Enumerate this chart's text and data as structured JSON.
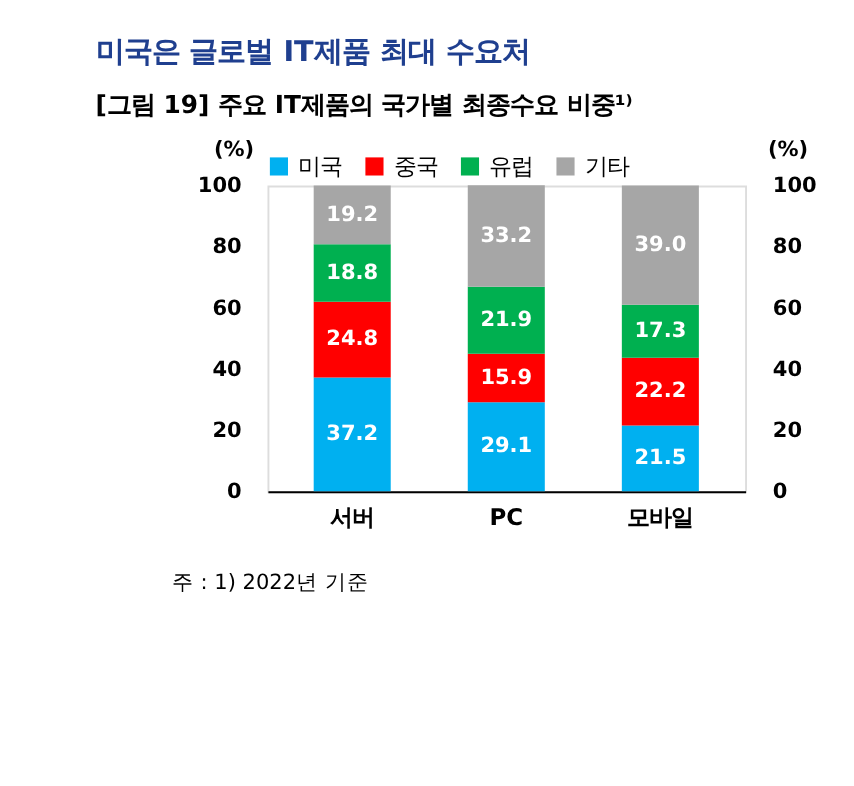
{
  "chart_data": {
    "type": "bar",
    "title": "미국은 글로벌 IT제품 최대 수요처",
    "subtitle": "[그림 19] 주요 IT제품의 국가별 최종수요 비중¹⁾",
    "categories": [
      "서버",
      "PC",
      "모바일"
    ],
    "series": [
      {
        "name": "미국",
        "color": "#00b0f0",
        "values": [
          37.2,
          29.1,
          21.5
        ],
        "value_labels": [
          "37.2",
          "29.1",
          "21.5"
        ]
      },
      {
        "name": "중국",
        "color": "#ff0000",
        "values": [
          24.8,
          15.9,
          22.2
        ],
        "value_labels": [
          "24.8",
          "15.9",
          "22.2"
        ]
      },
      {
        "name": "유럽",
        "color": "#00b050",
        "values": [
          18.8,
          21.9,
          17.3
        ],
        "value_labels": [
          "18.8",
          "21.9",
          "17.3"
        ]
      },
      {
        "name": "기타",
        "color": "#a6a6a6",
        "values": [
          19.2,
          33.2,
          39.0
        ],
        "value_labels": [
          "19.2",
          "33.2",
          "39.0"
        ]
      }
    ],
    "stacked": true,
    "legend": "top",
    "grid": false,
    "ylabel": "(%)",
    "ylim": [
      0,
      100
    ],
    "yticks": [
      0,
      20,
      40,
      60,
      80,
      100
    ],
    "y2label": "(%)",
    "y2lim": [
      0,
      100
    ],
    "y2ticks": [
      0,
      20,
      40,
      60,
      80,
      100
    ],
    "annotations": [
      "주 : 1) 2022년 기준"
    ]
  }
}
